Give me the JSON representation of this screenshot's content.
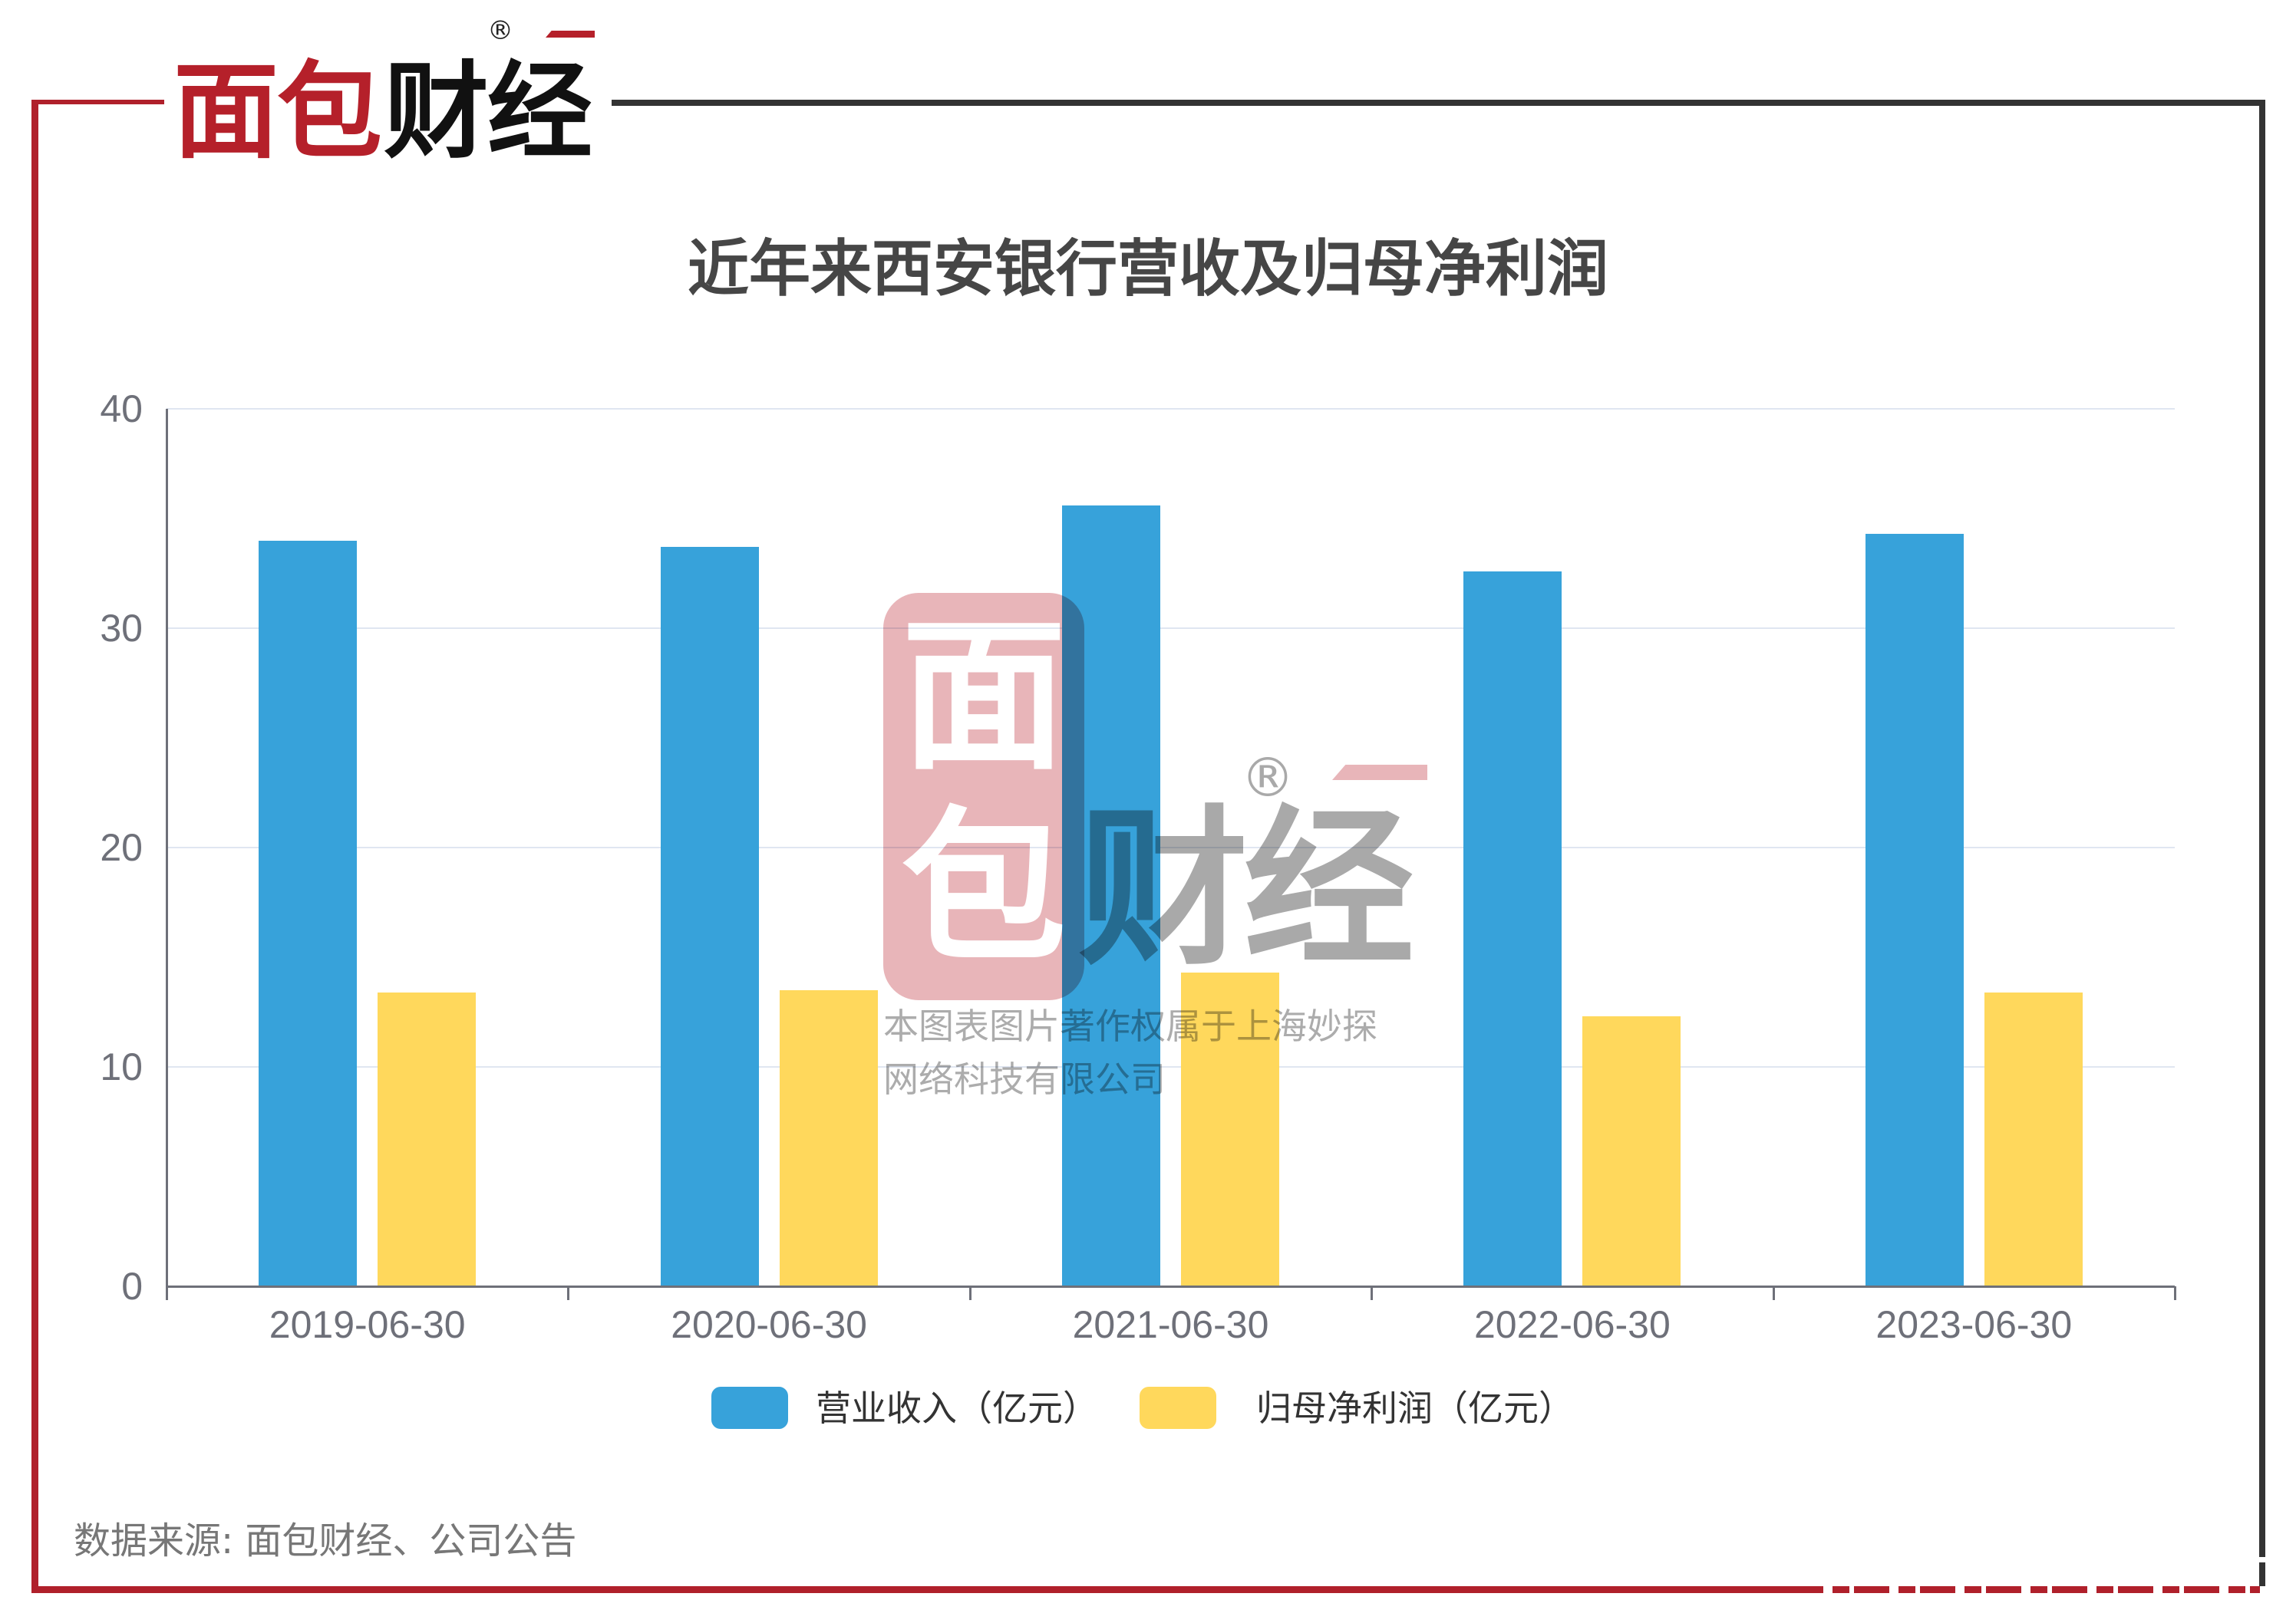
{
  "header": {
    "logo": {
      "part1": "面包",
      "part2": "财经",
      "registered": "®"
    }
  },
  "chart_data": {
    "type": "bar",
    "title": "近年来西安银行营收及归母净利润",
    "subtitle": "",
    "categories": [
      "2019-06-30",
      "2020-06-30",
      "2021-06-30",
      "2022-06-30",
      "2023-06-30"
    ],
    "series": [
      {
        "name": "营业收入（亿元）",
        "color": "#37A2DA",
        "values": [
          34.0,
          33.7,
          35.6,
          32.6,
          34.3
        ]
      },
      {
        "name": "归母净利润（亿元）",
        "color": "#FFD85C",
        "values": [
          13.4,
          13.5,
          14.3,
          12.3,
          13.4
        ]
      }
    ],
    "xlabel": "",
    "ylabel": "",
    "ylim": [
      0,
      40
    ],
    "yticks": [
      "0",
      "10",
      "20",
      "30",
      "40"
    ],
    "grid": true,
    "legend_position": "bottom"
  },
  "legend": {
    "items": [
      {
        "label": "营业收入（亿元）",
        "color": "#37A2DA"
      },
      {
        "label": "归母净利润（亿元）",
        "color": "#FFD85C"
      }
    ]
  },
  "watermark": {
    "seal_char1": "面",
    "seal_char2": "包",
    "brand": "财经",
    "registered": "®",
    "copyright_line1": "本图表图片著作权属于上海妙探",
    "copyright_line2": "网络科技有限公司"
  },
  "footer": {
    "source": "数据来源: 面包财经、公司公告"
  },
  "colors": {
    "frame_red": "#B0202B",
    "frame_dark": "#333333",
    "logo_red": "#B5202A",
    "title": "#464646",
    "axis": "#6E7079",
    "grid": "#E0E6F1"
  }
}
